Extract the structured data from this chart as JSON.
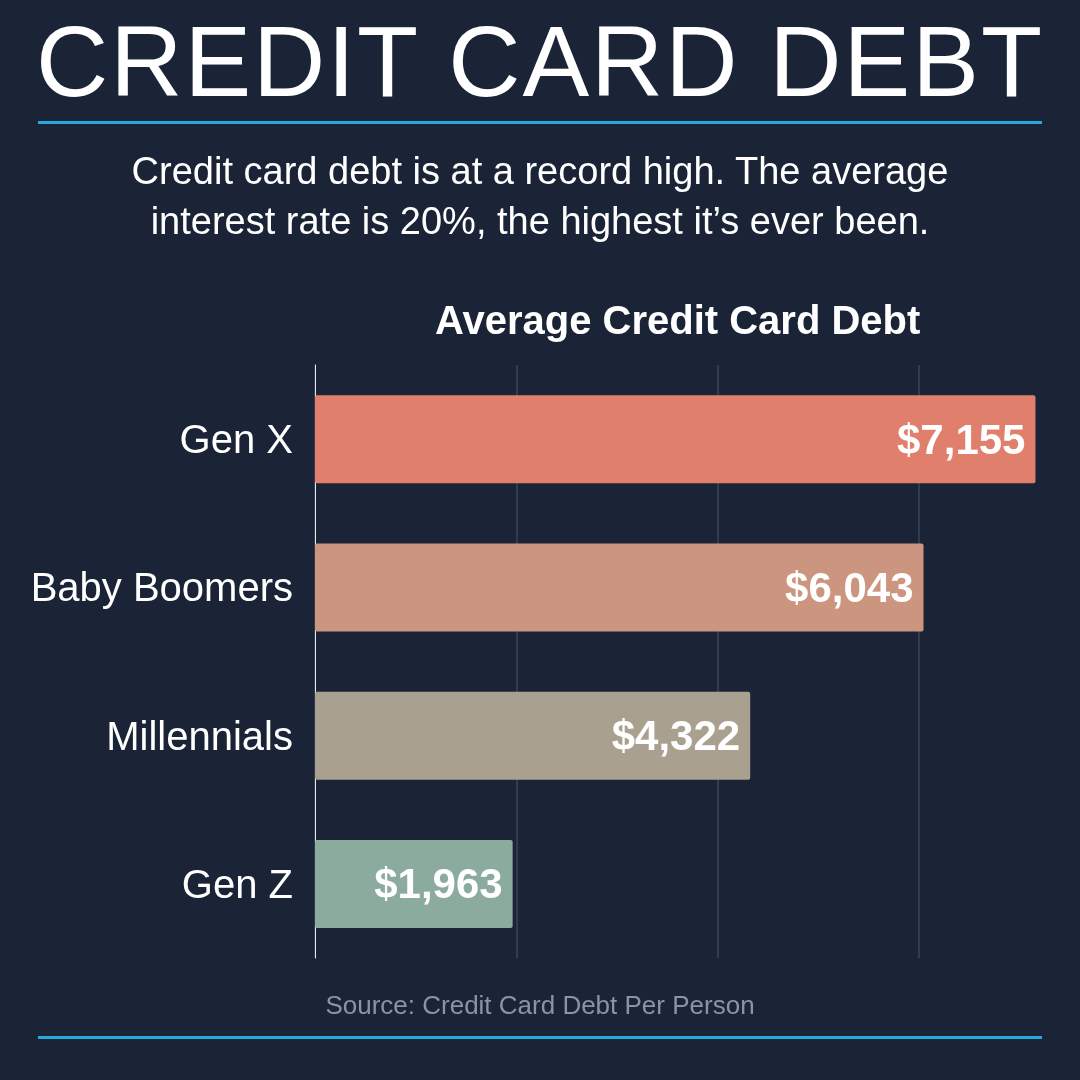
{
  "chart_data": {
    "type": "bar",
    "orientation": "horizontal",
    "title": "CREDIT CARD DEBT",
    "subtitle": "Credit card debt is at a record high. The average interest rate is 20%, the highest it’s ever been.",
    "annotations": [
      "Average Credit Card Debt",
      "Source: Credit Card Debt Per Person"
    ],
    "categories": [
      "Gen X",
      "Baby Boomers",
      "Millennials",
      "Gen Z"
    ],
    "values": [
      7155,
      6043,
      4322,
      1963
    ],
    "colors": [
      "#e07f6c",
      "#cc9580",
      "#aaa090",
      "#8aab9e"
    ],
    "value_labels": [
      "$7,155",
      "$6,043",
      "$4,322",
      "$1,963"
    ],
    "xlim": [
      0,
      7200
    ],
    "xticks": [
      {
        "value": 0,
        "label": null
      },
      {
        "value": 2000,
        "label": null
      },
      {
        "value": 4000,
        "label": null
      },
      {
        "value": 6000,
        "label": null
      }
    ],
    "grid": "x",
    "tick_labels": "y"
  }
}
